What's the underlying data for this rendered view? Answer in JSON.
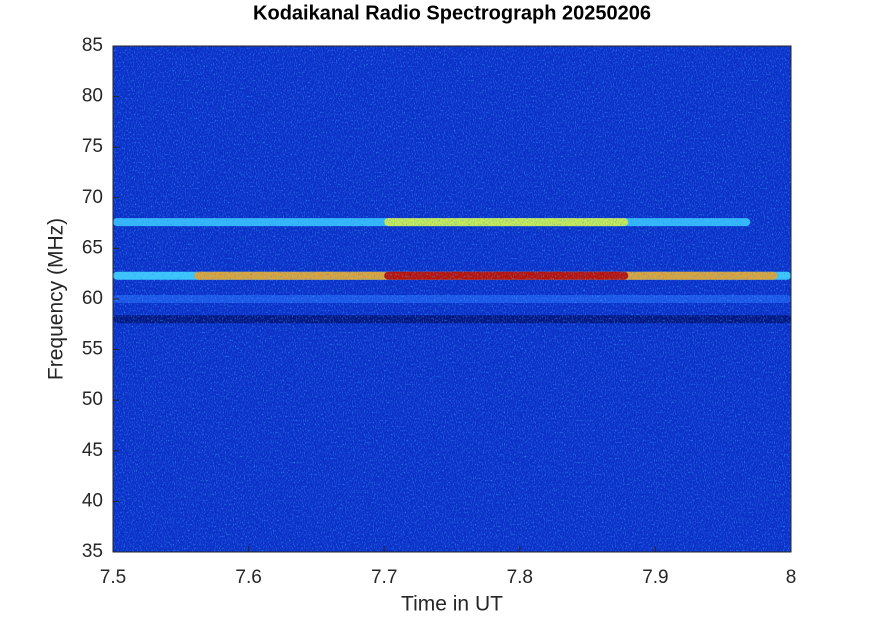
{
  "chart_data": {
    "type": "spectrogram",
    "title": "Kodaikanal Radio Spectrograph  20250206",
    "xlabel": "Time in UT",
    "ylabel": "Frequency (MHz)",
    "xlim": [
      7.5,
      8
    ],
    "xticks": [
      7.5,
      7.6,
      7.7,
      7.8,
      7.9,
      8
    ],
    "ylim": [
      35,
      85
    ],
    "yticks": [
      35,
      40,
      45,
      50,
      55,
      60,
      65,
      70,
      75,
      80,
      85
    ],
    "background": "#0b30c8",
    "bands": [
      {
        "y": 58,
        "x": [
          7.5,
          8
        ],
        "color": "#00137a"
      },
      {
        "y": 60,
        "x": [
          7.5,
          8
        ],
        "color": "#1d5ae8"
      },
      {
        "y": 67.6,
        "x": [
          7.5,
          7.97
        ],
        "color": "#39c8ff"
      },
      {
        "y": 67.6,
        "x": [
          7.7,
          7.88
        ],
        "color": "#d8f040"
      },
      {
        "y": 62.3,
        "x": [
          7.5,
          8
        ],
        "color": "#42d8ff"
      },
      {
        "y": 62.3,
        "x": [
          7.56,
          7.99
        ],
        "color": "#f0a020"
      },
      {
        "y": 62.3,
        "x": [
          7.7,
          7.88
        ],
        "color": "#b80000"
      }
    ]
  }
}
